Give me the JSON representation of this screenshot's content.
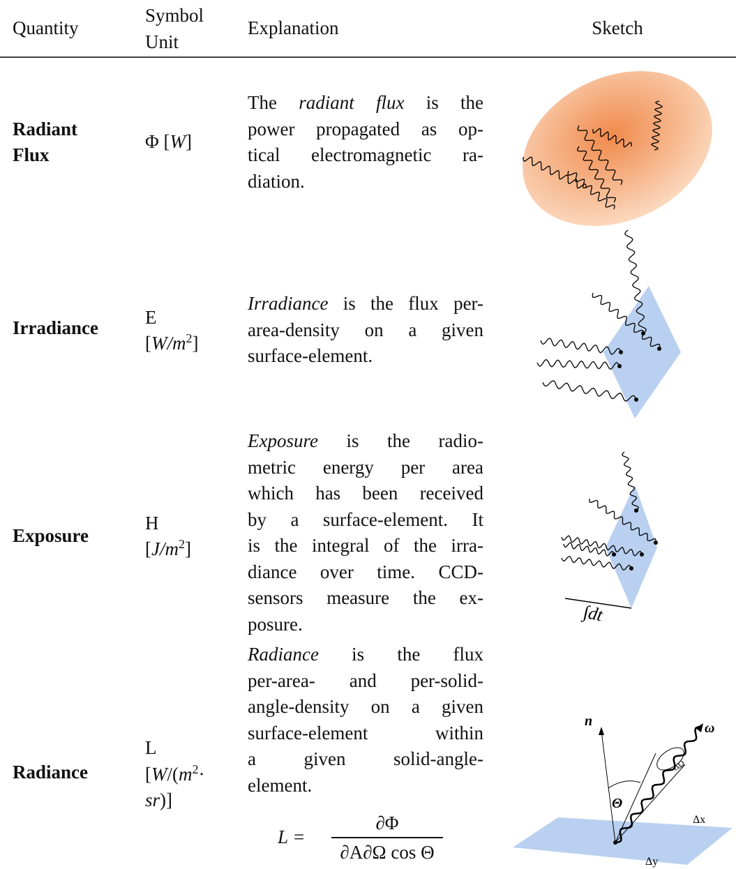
{
  "header": {
    "quantity": "Quantity",
    "symbol_unit": [
      "Symbol",
      "Unit"
    ],
    "explanation": "Explanation",
    "sketch": "Sketch"
  },
  "rows": [
    {
      "quantity": [
        "Radiant",
        "Flux"
      ],
      "symbol": [
        [
          "Φ [",
          {
            "em": "W"
          },
          "]"
        ]
      ],
      "explanation": [
        [
          "The ",
          {
            "em": "radiant flux"
          },
          " is the"
        ],
        [
          "power propagated as op-"
        ],
        [
          "tical electromagnetic ra-"
        ],
        [
          "diation."
        ]
      ]
    },
    {
      "quantity": [
        "Irradiance"
      ],
      "symbol": [
        [
          "E"
        ],
        [
          "[",
          {
            "em": "W/m"
          },
          {
            "sup": "2"
          },
          "]"
        ]
      ],
      "explanation": [
        [
          {
            "em": "Irradiance"
          },
          " is the flux per-"
        ],
        [
          "area-density on a given"
        ],
        [
          "surface-element."
        ]
      ]
    },
    {
      "quantity": [
        "Exposure"
      ],
      "symbol": [
        [
          "H"
        ],
        [
          "[",
          {
            "em": "J/m"
          },
          {
            "sup": "2"
          },
          "]"
        ]
      ],
      "explanation": [
        [
          {
            "em": "Exposure"
          },
          " is the radio-"
        ],
        [
          "metric energy per area"
        ],
        [
          "which has been received"
        ],
        [
          "by a surface-element. It"
        ],
        [
          "is the integral of the irra-"
        ],
        [
          "diance over time. CCD-"
        ],
        [
          "sensors measure the ex-"
        ],
        [
          "posure."
        ]
      ],
      "sketch_labels": [
        "∫dt"
      ]
    },
    {
      "quantity": [
        "Radiance"
      ],
      "symbol": [
        [
          "L"
        ],
        [
          "[",
          {
            "em": "W"
          },
          "/(",
          {
            "em": "m"
          },
          {
            "sup": "2"
          },
          "·"
        ],
        [
          {
            "em": "sr"
          },
          ")]"
        ]
      ],
      "explanation": [
        [
          {
            "em": "Radiance"
          },
          " is the flux"
        ],
        [
          "per-area- and per-solid-"
        ],
        [
          "angle-density on a given"
        ],
        [
          "surface-element within"
        ],
        [
          "a given solid-angle-"
        ],
        [
          "element."
        ]
      ],
      "formula": {
        "lhs": "L =",
        "numerator": "∂Φ",
        "denominator": "∂A∂Ω cos Θ"
      },
      "sketch_labels": [
        "n",
        "ω",
        "Θ",
        "ΔΩ",
        "Δx",
        "Δy"
      ]
    }
  ]
}
